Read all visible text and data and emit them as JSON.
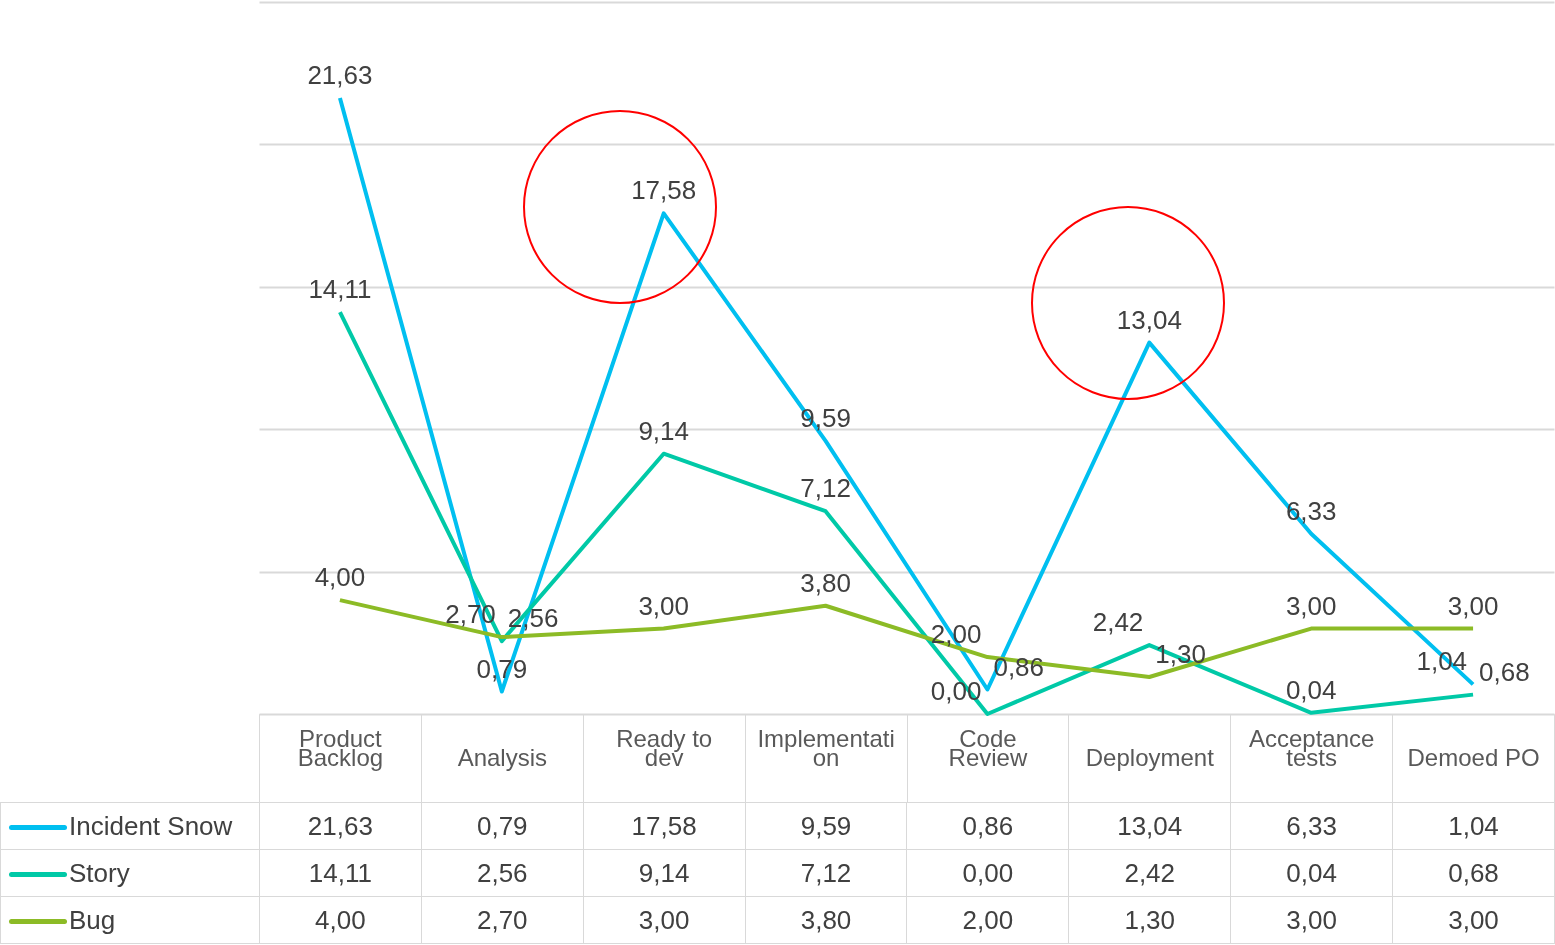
{
  "chart_data": {
    "type": "line",
    "categories": [
      "Product Backlog",
      "Analysis",
      "Ready to dev",
      "Implementation",
      "Code Review",
      "Deployment",
      "Acceptance tests",
      "Demoed PO"
    ],
    "series": [
      {
        "name": "Incident Snow",
        "color": "#00bff0",
        "values": [
          21.63,
          0.79,
          17.58,
          9.59,
          0.86,
          13.04,
          6.33,
          1.04
        ],
        "value_labels": [
          "21,63",
          "0,79",
          "17,58",
          "9,59",
          "0,86",
          "13,04",
          "6,33",
          "1,04"
        ]
      },
      {
        "name": "Story",
        "color": "#00c9a7",
        "values": [
          14.11,
          2.56,
          9.14,
          7.12,
          0.0,
          2.42,
          0.04,
          0.68
        ],
        "value_labels": [
          "14,11",
          "2,56",
          "9,14",
          "7,12",
          "0,00",
          "2,42",
          "0,04",
          "0,68"
        ]
      },
      {
        "name": "Bug",
        "color": "#8cbb26",
        "values": [
          4.0,
          2.7,
          3.0,
          3.8,
          2.0,
          1.3,
          3.0,
          3.0
        ],
        "value_labels": [
          "4,00",
          "2,70",
          "3,00",
          "3,80",
          "2,00",
          "1,30",
          "3,00",
          "3,00"
        ]
      }
    ],
    "grid": "y",
    "tick_labels": "x",
    "legend": "bottom"
  }
}
